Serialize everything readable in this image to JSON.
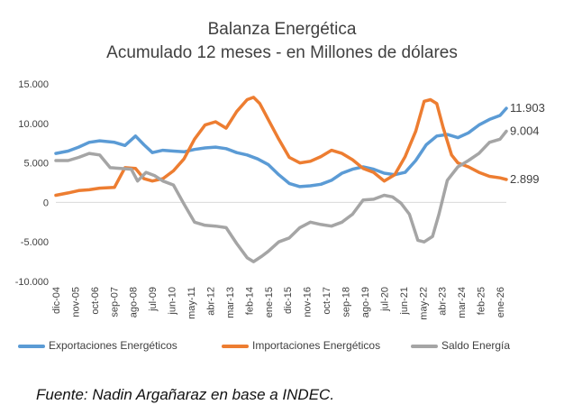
{
  "chart_data": {
    "type": "line",
    "title": "Balanza Energética",
    "subtitle": "Acumulado 12 meses - en Millones de dólares",
    "ylim": [
      -10000,
      15000
    ],
    "y_ticks": [
      "15.000",
      "10.000",
      "5.000",
      "0",
      "-5.000",
      "-10.000"
    ],
    "y_tick_values": [
      15000,
      10000,
      5000,
      0,
      -5000,
      -10000
    ],
    "x_ticks": [
      "dic-04",
      "nov-05",
      "oct-06",
      "sep-07",
      "ago-08",
      "jul-09",
      "jun-10",
      "may-11",
      "abr-12",
      "mar-13",
      "feb-14",
      "ene-15",
      "dic-15",
      "nov-16",
      "oct-17",
      "sep-18",
      "ago-19",
      "jul-20",
      "jun-21",
      "may-22",
      "abr-23",
      "mar-24",
      "feb-25",
      "ene-26"
    ],
    "grid": false,
    "legend_position": "bottom",
    "series": [
      {
        "name": "Exportaciones Energéticos",
        "color": "#5b9bd5",
        "points": [
          [
            2004.92,
            6200
          ],
          [
            2005.5,
            6500
          ],
          [
            2006.0,
            7000
          ],
          [
            2006.5,
            7600
          ],
          [
            2007.0,
            7800
          ],
          [
            2007.7,
            7600
          ],
          [
            2008.2,
            7200
          ],
          [
            2008.7,
            8400
          ],
          [
            2009.1,
            7300
          ],
          [
            2009.5,
            6300
          ],
          [
            2010.0,
            6600
          ],
          [
            2010.5,
            6500
          ],
          [
            2011.0,
            6400
          ],
          [
            2011.5,
            6700
          ],
          [
            2012.0,
            6900
          ],
          [
            2012.5,
            7000
          ],
          [
            2013.0,
            6800
          ],
          [
            2013.5,
            6300
          ],
          [
            2014.0,
            6000
          ],
          [
            2014.5,
            5500
          ],
          [
            2015.0,
            4800
          ],
          [
            2015.5,
            3500
          ],
          [
            2016.0,
            2400
          ],
          [
            2016.5,
            2000
          ],
          [
            2017.0,
            2100
          ],
          [
            2017.5,
            2300
          ],
          [
            2018.0,
            2800
          ],
          [
            2018.5,
            3700
          ],
          [
            2019.0,
            4200
          ],
          [
            2019.5,
            4500
          ],
          [
            2020.0,
            4200
          ],
          [
            2020.5,
            3700
          ],
          [
            2021.0,
            3500
          ],
          [
            2021.5,
            3800
          ],
          [
            2022.0,
            5300
          ],
          [
            2022.5,
            7300
          ],
          [
            2023.0,
            8400
          ],
          [
            2023.5,
            8600
          ],
          [
            2024.0,
            8200
          ],
          [
            2024.5,
            8800
          ],
          [
            2025.0,
            9800
          ],
          [
            2025.5,
            10500
          ],
          [
            2026.0,
            11000
          ],
          [
            2026.3,
            11903
          ]
        ]
      },
      {
        "name": "Importaciones Energéticos",
        "color": "#ed7d31",
        "points": [
          [
            2004.92,
            900
          ],
          [
            2005.5,
            1200
          ],
          [
            2006.0,
            1500
          ],
          [
            2006.5,
            1600
          ],
          [
            2007.0,
            1800
          ],
          [
            2007.7,
            1900
          ],
          [
            2008.2,
            4400
          ],
          [
            2008.7,
            4300
          ],
          [
            2009.1,
            3000
          ],
          [
            2009.5,
            2700
          ],
          [
            2010.0,
            3000
          ],
          [
            2010.5,
            4000
          ],
          [
            2011.0,
            5500
          ],
          [
            2011.5,
            8000
          ],
          [
            2012.0,
            9800
          ],
          [
            2012.5,
            10200
          ],
          [
            2013.0,
            9400
          ],
          [
            2013.5,
            11500
          ],
          [
            2014.0,
            13000
          ],
          [
            2014.3,
            13300
          ],
          [
            2014.6,
            12500
          ],
          [
            2015.0,
            10500
          ],
          [
            2015.5,
            8000
          ],
          [
            2016.0,
            5700
          ],
          [
            2016.5,
            5000
          ],
          [
            2017.0,
            5200
          ],
          [
            2017.5,
            5800
          ],
          [
            2018.0,
            6600
          ],
          [
            2018.5,
            6200
          ],
          [
            2019.0,
            5400
          ],
          [
            2019.5,
            4300
          ],
          [
            2020.0,
            3800
          ],
          [
            2020.5,
            2700
          ],
          [
            2021.0,
            3500
          ],
          [
            2021.5,
            5800
          ],
          [
            2022.0,
            9000
          ],
          [
            2022.4,
            12800
          ],
          [
            2022.7,
            13000
          ],
          [
            2023.0,
            12500
          ],
          [
            2023.3,
            9500
          ],
          [
            2023.7,
            6000
          ],
          [
            2024.0,
            5000
          ],
          [
            2024.5,
            4500
          ],
          [
            2025.0,
            3800
          ],
          [
            2025.5,
            3300
          ],
          [
            2026.0,
            3100
          ],
          [
            2026.3,
            2899
          ]
        ]
      },
      {
        "name": "Saldo Energía",
        "color": "#a5a5a5",
        "points": [
          [
            2004.92,
            5300
          ],
          [
            2005.5,
            5300
          ],
          [
            2006.0,
            5700
          ],
          [
            2006.5,
            6200
          ],
          [
            2007.0,
            6000
          ],
          [
            2007.5,
            4400
          ],
          [
            2008.0,
            4300
          ],
          [
            2008.5,
            4200
          ],
          [
            2008.8,
            2700
          ],
          [
            2009.2,
            3800
          ],
          [
            2009.6,
            3400
          ],
          [
            2010.0,
            2700
          ],
          [
            2010.5,
            2200
          ],
          [
            2011.0,
            -200
          ],
          [
            2011.5,
            -2500
          ],
          [
            2012.0,
            -2900
          ],
          [
            2012.5,
            -3000
          ],
          [
            2013.0,
            -3200
          ],
          [
            2013.5,
            -5200
          ],
          [
            2014.0,
            -7000
          ],
          [
            2014.3,
            -7500
          ],
          [
            2014.7,
            -6800
          ],
          [
            2015.0,
            -6200
          ],
          [
            2015.5,
            -5000
          ],
          [
            2016.0,
            -4500
          ],
          [
            2016.5,
            -3200
          ],
          [
            2017.0,
            -2500
          ],
          [
            2017.5,
            -2800
          ],
          [
            2018.0,
            -3000
          ],
          [
            2018.5,
            -2500
          ],
          [
            2019.0,
            -1500
          ],
          [
            2019.5,
            300
          ],
          [
            2020.0,
            400
          ],
          [
            2020.5,
            900
          ],
          [
            2020.9,
            700
          ],
          [
            2021.3,
            -100
          ],
          [
            2021.7,
            -1500
          ],
          [
            2022.1,
            -4800
          ],
          [
            2022.4,
            -5000
          ],
          [
            2022.8,
            -4300
          ],
          [
            2023.1,
            -1500
          ],
          [
            2023.5,
            2800
          ],
          [
            2024.0,
            4500
          ],
          [
            2024.5,
            5300
          ],
          [
            2025.0,
            6200
          ],
          [
            2025.5,
            7600
          ],
          [
            2026.0,
            8000
          ],
          [
            2026.3,
            9004
          ]
        ]
      }
    ],
    "end_labels": [
      "11.903",
      "9.004",
      "2.899"
    ],
    "end_label_values": [
      11903,
      9004,
      2899
    ]
  },
  "source": "Fuente: Nadin Argañaraz en base a INDEC."
}
